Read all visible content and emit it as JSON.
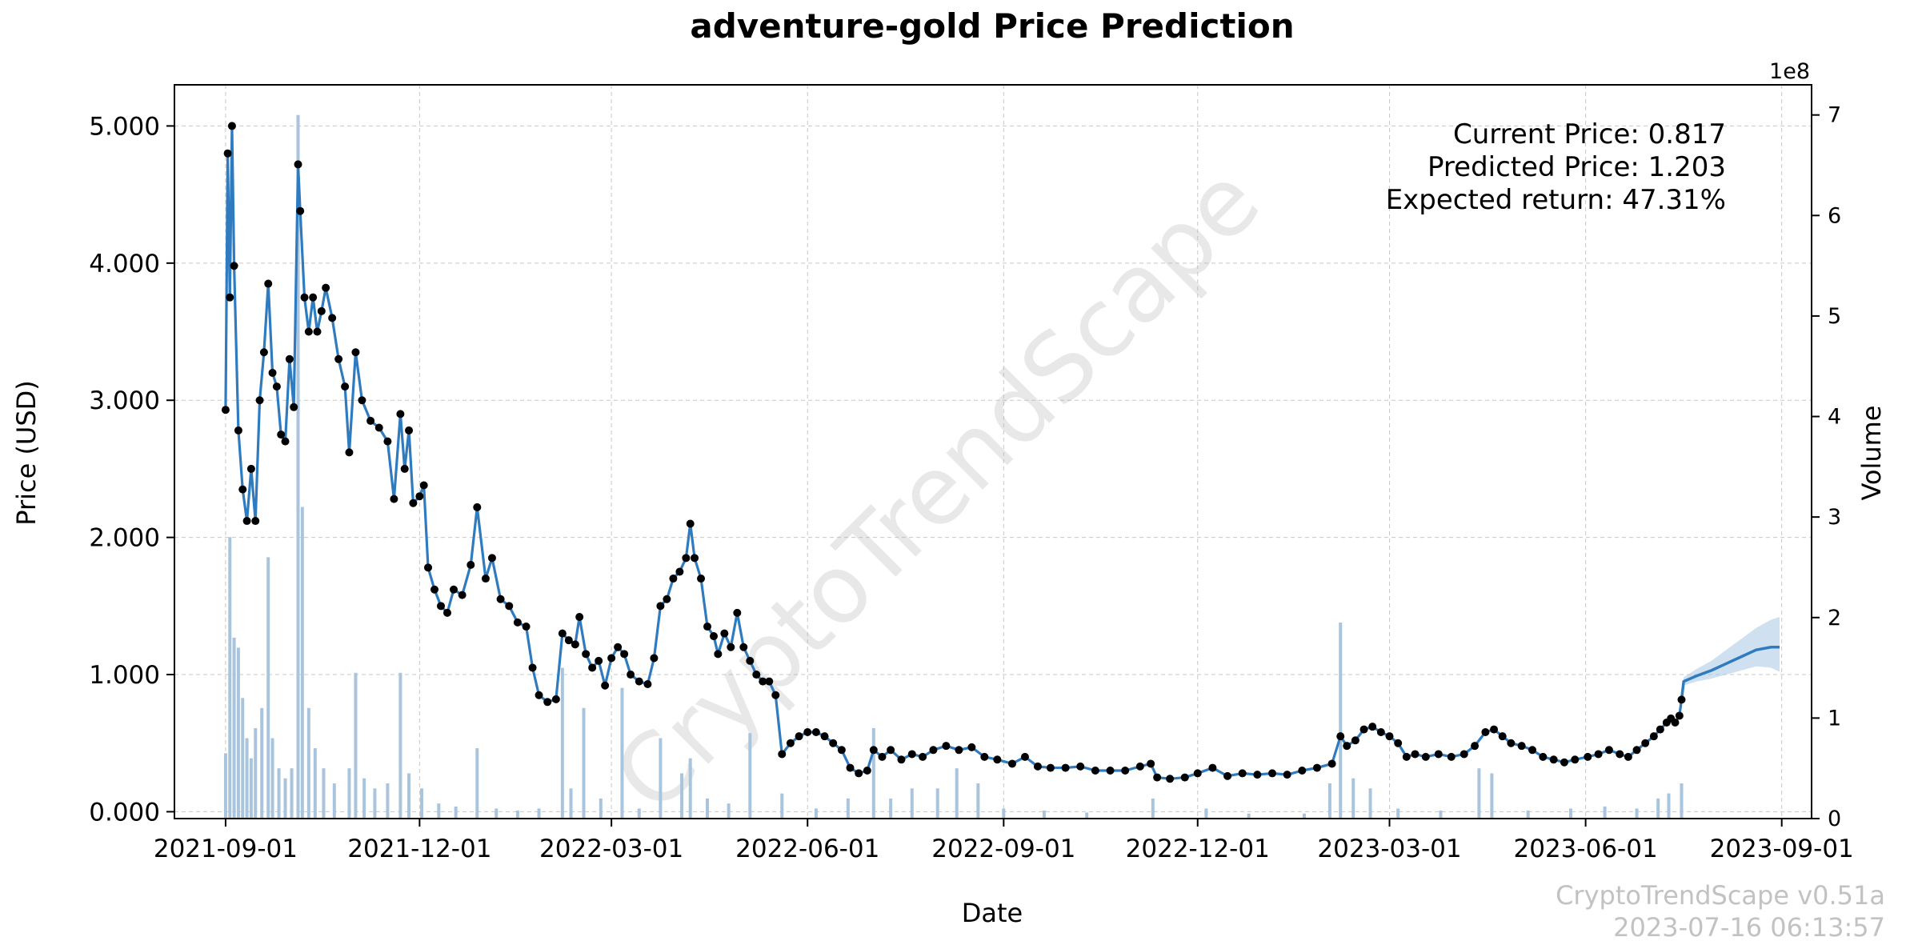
{
  "chart_data": {
    "type": "line",
    "title": "adventure-gold Price Prediction",
    "xlabel": "Date",
    "ylabel": "Price (USD)",
    "y2label": "Volume",
    "y2_multiplier_label": "1e8",
    "x_range": [
      "2021-08-08",
      "2023-09-15"
    ],
    "ylim": [
      -0.05,
      5.3
    ],
    "y2lim": [
      0,
      7.3
    ],
    "x_ticks": [
      "2021-09-01",
      "2021-12-01",
      "2022-03-01",
      "2022-06-01",
      "2022-09-01",
      "2022-12-01",
      "2023-03-01",
      "2023-06-01",
      "2023-09-01"
    ],
    "y_ticks": [
      "0.000",
      "1.000",
      "2.000",
      "3.000",
      "4.000",
      "5.000"
    ],
    "y2_ticks": [
      "0",
      "1",
      "2",
      "3",
      "4",
      "5",
      "6",
      "7"
    ],
    "grid": true,
    "annotations": {
      "current_price": "Current Price: 0.817",
      "predicted_price": "Predicted Price: 1.203",
      "expected_return": "Expected return: 47.31%"
    },
    "watermark": "CryptoTrendScape",
    "footer": {
      "version": "CryptoTrendScape v0.51a",
      "timestamp": "2023-07-16 06:13:57"
    },
    "colors": {
      "price_line": "#2f7bbf",
      "price_points": "#000000",
      "volume_bars": "#a9c4dd",
      "forecast_band": "#a7c6e4",
      "grid": "#b0b0b0"
    },
    "price_series": [
      [
        "2021-09-01",
        2.93
      ],
      [
        "2021-09-02",
        4.8
      ],
      [
        "2021-09-03",
        3.75
      ],
      [
        "2021-09-04",
        5.0
      ],
      [
        "2021-09-05",
        3.98
      ],
      [
        "2021-09-07",
        2.78
      ],
      [
        "2021-09-09",
        2.35
      ],
      [
        "2021-09-11",
        2.12
      ],
      [
        "2021-09-13",
        2.5
      ],
      [
        "2021-09-15",
        2.12
      ],
      [
        "2021-09-17",
        3.0
      ],
      [
        "2021-09-19",
        3.35
      ],
      [
        "2021-09-21",
        3.85
      ],
      [
        "2021-09-23",
        3.2
      ],
      [
        "2021-09-25",
        3.1
      ],
      [
        "2021-09-27",
        2.75
      ],
      [
        "2021-09-29",
        2.7
      ],
      [
        "2021-10-01",
        3.3
      ],
      [
        "2021-10-03",
        2.95
      ],
      [
        "2021-10-05",
        4.72
      ],
      [
        "2021-10-06",
        4.38
      ],
      [
        "2021-10-08",
        3.75
      ],
      [
        "2021-10-10",
        3.5
      ],
      [
        "2021-10-12",
        3.75
      ],
      [
        "2021-10-14",
        3.5
      ],
      [
        "2021-10-16",
        3.65
      ],
      [
        "2021-10-18",
        3.82
      ],
      [
        "2021-10-21",
        3.6
      ],
      [
        "2021-10-24",
        3.3
      ],
      [
        "2021-10-27",
        3.1
      ],
      [
        "2021-10-29",
        2.62
      ],
      [
        "2021-11-01",
        3.35
      ],
      [
        "2021-11-04",
        3.0
      ],
      [
        "2021-11-08",
        2.85
      ],
      [
        "2021-11-12",
        2.8
      ],
      [
        "2021-11-16",
        2.7
      ],
      [
        "2021-11-19",
        2.28
      ],
      [
        "2021-11-22",
        2.9
      ],
      [
        "2021-11-24",
        2.5
      ],
      [
        "2021-11-26",
        2.78
      ],
      [
        "2021-11-28",
        2.25
      ],
      [
        "2021-12-01",
        2.3
      ],
      [
        "2021-12-03",
        2.38
      ],
      [
        "2021-12-05",
        1.78
      ],
      [
        "2021-12-08",
        1.62
      ],
      [
        "2021-12-11",
        1.5
      ],
      [
        "2021-12-14",
        1.45
      ],
      [
        "2021-12-17",
        1.62
      ],
      [
        "2021-12-21",
        1.58
      ],
      [
        "2021-12-25",
        1.8
      ],
      [
        "2021-12-28",
        2.22
      ],
      [
        "2022-01-01",
        1.7
      ],
      [
        "2022-01-04",
        1.85
      ],
      [
        "2022-01-08",
        1.55
      ],
      [
        "2022-01-12",
        1.5
      ],
      [
        "2022-01-16",
        1.38
      ],
      [
        "2022-01-20",
        1.35
      ],
      [
        "2022-01-23",
        1.05
      ],
      [
        "2022-01-26",
        0.85
      ],
      [
        "2022-01-30",
        0.8
      ],
      [
        "2022-02-03",
        0.82
      ],
      [
        "2022-02-06",
        1.3
      ],
      [
        "2022-02-09",
        1.25
      ],
      [
        "2022-02-12",
        1.22
      ],
      [
        "2022-02-14",
        1.42
      ],
      [
        "2022-02-17",
        1.15
      ],
      [
        "2022-02-20",
        1.05
      ],
      [
        "2022-02-23",
        1.1
      ],
      [
        "2022-02-26",
        0.92
      ],
      [
        "2022-03-01",
        1.12
      ],
      [
        "2022-03-04",
        1.2
      ],
      [
        "2022-03-07",
        1.15
      ],
      [
        "2022-03-10",
        1.0
      ],
      [
        "2022-03-14",
        0.95
      ],
      [
        "2022-03-18",
        0.93
      ],
      [
        "2022-03-21",
        1.12
      ],
      [
        "2022-03-24",
        1.5
      ],
      [
        "2022-03-27",
        1.55
      ],
      [
        "2022-03-30",
        1.7
      ],
      [
        "2022-04-02",
        1.75
      ],
      [
        "2022-04-05",
        1.85
      ],
      [
        "2022-04-07",
        2.1
      ],
      [
        "2022-04-09",
        1.85
      ],
      [
        "2022-04-12",
        1.7
      ],
      [
        "2022-04-15",
        1.35
      ],
      [
        "2022-04-18",
        1.28
      ],
      [
        "2022-04-20",
        1.15
      ],
      [
        "2022-04-23",
        1.3
      ],
      [
        "2022-04-26",
        1.2
      ],
      [
        "2022-04-29",
        1.45
      ],
      [
        "2022-05-02",
        1.2
      ],
      [
        "2022-05-05",
        1.1
      ],
      [
        "2022-05-08",
        1.0
      ],
      [
        "2022-05-11",
        0.95
      ],
      [
        "2022-05-14",
        0.95
      ],
      [
        "2022-05-17",
        0.85
      ],
      [
        "2022-05-20",
        0.42
      ],
      [
        "2022-05-24",
        0.5
      ],
      [
        "2022-05-28",
        0.55
      ],
      [
        "2022-06-01",
        0.58
      ],
      [
        "2022-06-05",
        0.58
      ],
      [
        "2022-06-09",
        0.55
      ],
      [
        "2022-06-13",
        0.5
      ],
      [
        "2022-06-17",
        0.45
      ],
      [
        "2022-06-21",
        0.32
      ],
      [
        "2022-06-25",
        0.28
      ],
      [
        "2022-06-29",
        0.3
      ],
      [
        "2022-07-02",
        0.45
      ],
      [
        "2022-07-06",
        0.4
      ],
      [
        "2022-07-10",
        0.45
      ],
      [
        "2022-07-15",
        0.38
      ],
      [
        "2022-07-20",
        0.42
      ],
      [
        "2022-07-25",
        0.4
      ],
      [
        "2022-07-30",
        0.45
      ],
      [
        "2022-08-05",
        0.48
      ],
      [
        "2022-08-11",
        0.45
      ],
      [
        "2022-08-17",
        0.47
      ],
      [
        "2022-08-23",
        0.4
      ],
      [
        "2022-08-29",
        0.38
      ],
      [
        "2022-09-05",
        0.35
      ],
      [
        "2022-09-11",
        0.4
      ],
      [
        "2022-09-17",
        0.33
      ],
      [
        "2022-09-23",
        0.32
      ],
      [
        "2022-09-30",
        0.32
      ],
      [
        "2022-10-07",
        0.33
      ],
      [
        "2022-10-14",
        0.3
      ],
      [
        "2022-10-21",
        0.3
      ],
      [
        "2022-10-28",
        0.3
      ],
      [
        "2022-11-04",
        0.33
      ],
      [
        "2022-11-09",
        0.35
      ],
      [
        "2022-11-12",
        0.25
      ],
      [
        "2022-11-18",
        0.24
      ],
      [
        "2022-11-25",
        0.25
      ],
      [
        "2022-12-01",
        0.28
      ],
      [
        "2022-12-08",
        0.32
      ],
      [
        "2022-12-15",
        0.26
      ],
      [
        "2022-12-22",
        0.28
      ],
      [
        "2022-12-29",
        0.27
      ],
      [
        "2023-01-05",
        0.28
      ],
      [
        "2023-01-12",
        0.27
      ],
      [
        "2023-01-19",
        0.3
      ],
      [
        "2023-01-26",
        0.32
      ],
      [
        "2023-02-02",
        0.35
      ],
      [
        "2023-02-06",
        0.55
      ],
      [
        "2023-02-09",
        0.48
      ],
      [
        "2023-02-13",
        0.52
      ],
      [
        "2023-02-17",
        0.6
      ],
      [
        "2023-02-21",
        0.62
      ],
      [
        "2023-02-25",
        0.58
      ],
      [
        "2023-03-01",
        0.55
      ],
      [
        "2023-03-05",
        0.5
      ],
      [
        "2023-03-09",
        0.4
      ],
      [
        "2023-03-13",
        0.42
      ],
      [
        "2023-03-18",
        0.4
      ],
      [
        "2023-03-24",
        0.42
      ],
      [
        "2023-03-30",
        0.4
      ],
      [
        "2023-04-05",
        0.42
      ],
      [
        "2023-04-10",
        0.48
      ],
      [
        "2023-04-15",
        0.58
      ],
      [
        "2023-04-19",
        0.6
      ],
      [
        "2023-04-23",
        0.55
      ],
      [
        "2023-04-27",
        0.5
      ],
      [
        "2023-05-02",
        0.48
      ],
      [
        "2023-05-07",
        0.45
      ],
      [
        "2023-05-12",
        0.4
      ],
      [
        "2023-05-17",
        0.38
      ],
      [
        "2023-05-22",
        0.36
      ],
      [
        "2023-05-27",
        0.38
      ],
      [
        "2023-06-02",
        0.4
      ],
      [
        "2023-06-07",
        0.42
      ],
      [
        "2023-06-12",
        0.45
      ],
      [
        "2023-06-17",
        0.42
      ],
      [
        "2023-06-21",
        0.4
      ],
      [
        "2023-06-25",
        0.45
      ],
      [
        "2023-06-29",
        0.5
      ],
      [
        "2023-07-03",
        0.55
      ],
      [
        "2023-07-06",
        0.6
      ],
      [
        "2023-07-09",
        0.65
      ],
      [
        "2023-07-11",
        0.68
      ],
      [
        "2023-07-13",
        0.65
      ],
      [
        "2023-07-15",
        0.7
      ],
      [
        "2023-07-16",
        0.817
      ]
    ],
    "forecast_series": [
      [
        "2023-07-16",
        0.817
      ],
      [
        "2023-07-17",
        0.95
      ],
      [
        "2023-07-23",
        0.99
      ],
      [
        "2023-07-30",
        1.03
      ],
      [
        "2023-08-06",
        1.08
      ],
      [
        "2023-08-13",
        1.13
      ],
      [
        "2023-08-20",
        1.18
      ],
      [
        "2023-08-27",
        1.2
      ],
      [
        "2023-08-31",
        1.2
      ]
    ],
    "forecast_band_upper": [
      0.817,
      0.98,
      1.04,
      1.1,
      1.18,
      1.26,
      1.34,
      1.4,
      1.42
    ],
    "forecast_band_lower": [
      0.817,
      0.92,
      0.95,
      0.97,
      1.0,
      1.03,
      1.06,
      1.05,
      1.02
    ],
    "volume_series_1e8": [
      [
        "2021-09-01",
        0.65
      ],
      [
        "2021-09-03",
        2.8
      ],
      [
        "2021-09-05",
        1.8
      ],
      [
        "2021-09-07",
        1.7
      ],
      [
        "2021-09-09",
        1.2
      ],
      [
        "2021-09-11",
        0.8
      ],
      [
        "2021-09-13",
        0.6
      ],
      [
        "2021-09-15",
        0.9
      ],
      [
        "2021-09-18",
        1.1
      ],
      [
        "2021-09-21",
        2.6
      ],
      [
        "2021-09-23",
        0.8
      ],
      [
        "2021-09-26",
        0.5
      ],
      [
        "2021-09-29",
        0.4
      ],
      [
        "2021-10-02",
        0.5
      ],
      [
        "2021-10-05",
        7.0
      ],
      [
        "2021-10-07",
        3.1
      ],
      [
        "2021-10-10",
        1.1
      ],
      [
        "2021-10-13",
        0.7
      ],
      [
        "2021-10-17",
        0.5
      ],
      [
        "2021-10-22",
        0.35
      ],
      [
        "2021-10-29",
        0.5
      ],
      [
        "2021-11-01",
        1.45
      ],
      [
        "2021-11-05",
        0.4
      ],
      [
        "2021-11-10",
        0.3
      ],
      [
        "2021-11-16",
        0.35
      ],
      [
        "2021-11-22",
        1.45
      ],
      [
        "2021-11-26",
        0.45
      ],
      [
        "2021-12-02",
        0.3
      ],
      [
        "2021-12-10",
        0.15
      ],
      [
        "2021-12-18",
        0.12
      ],
      [
        "2021-12-28",
        0.7
      ],
      [
        "2022-01-06",
        0.1
      ],
      [
        "2022-01-16",
        0.08
      ],
      [
        "2022-01-26",
        0.1
      ],
      [
        "2022-02-06",
        1.5
      ],
      [
        "2022-02-10",
        0.3
      ],
      [
        "2022-02-16",
        1.1
      ],
      [
        "2022-02-24",
        0.2
      ],
      [
        "2022-03-06",
        1.3
      ],
      [
        "2022-03-14",
        0.1
      ],
      [
        "2022-03-24",
        0.8
      ],
      [
        "2022-04-03",
        0.45
      ],
      [
        "2022-04-07",
        0.6
      ],
      [
        "2022-04-15",
        0.2
      ],
      [
        "2022-04-25",
        0.15
      ],
      [
        "2022-05-05",
        0.85
      ],
      [
        "2022-05-20",
        0.25
      ],
      [
        "2022-06-05",
        0.1
      ],
      [
        "2022-06-20",
        0.2
      ],
      [
        "2022-07-02",
        0.9
      ],
      [
        "2022-07-10",
        0.2
      ],
      [
        "2022-07-20",
        0.3
      ],
      [
        "2022-08-01",
        0.3
      ],
      [
        "2022-08-10",
        0.5
      ],
      [
        "2022-08-20",
        0.35
      ],
      [
        "2022-09-01",
        0.1
      ],
      [
        "2022-09-20",
        0.08
      ],
      [
        "2022-10-10",
        0.06
      ],
      [
        "2022-11-10",
        0.2
      ],
      [
        "2022-12-05",
        0.1
      ],
      [
        "2022-12-25",
        0.05
      ],
      [
        "2023-01-20",
        0.05
      ],
      [
        "2023-02-01",
        0.35
      ],
      [
        "2023-02-06",
        1.95
      ],
      [
        "2023-02-12",
        0.4
      ],
      [
        "2023-02-20",
        0.3
      ],
      [
        "2023-03-05",
        0.1
      ],
      [
        "2023-03-25",
        0.08
      ],
      [
        "2023-04-12",
        0.5
      ],
      [
        "2023-04-18",
        0.45
      ],
      [
        "2023-05-05",
        0.08
      ],
      [
        "2023-05-25",
        0.1
      ],
      [
        "2023-06-10",
        0.12
      ],
      [
        "2023-06-25",
        0.1
      ],
      [
        "2023-07-05",
        0.2
      ],
      [
        "2023-07-10",
        0.25
      ],
      [
        "2023-07-16",
        0.35
      ]
    ]
  }
}
